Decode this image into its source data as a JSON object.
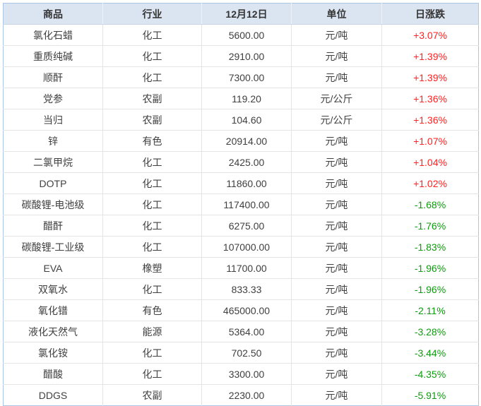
{
  "table": {
    "columns": [
      "商品",
      "行业",
      "12月12日",
      "单位",
      "日涨跌"
    ],
    "rows": [
      [
        "氯化石蜡",
        "化工",
        "5600.00",
        "元/吨",
        "+3.07%"
      ],
      [
        "重质纯碱",
        "化工",
        "2910.00",
        "元/吨",
        "+1.39%"
      ],
      [
        "顺酐",
        "化工",
        "7300.00",
        "元/吨",
        "+1.39%"
      ],
      [
        "党参",
        "农副",
        "119.20",
        "元/公斤",
        "+1.36%"
      ],
      [
        "当归",
        "农副",
        "104.60",
        "元/公斤",
        "+1.36%"
      ],
      [
        "锌",
        "有色",
        "20914.00",
        "元/吨",
        "+1.07%"
      ],
      [
        "二氯甲烷",
        "化工",
        "2425.00",
        "元/吨",
        "+1.04%"
      ],
      [
        "DOTP",
        "化工",
        "11860.00",
        "元/吨",
        "+1.02%"
      ],
      [
        "碳酸锂-电池级",
        "化工",
        "117400.00",
        "元/吨",
        "-1.68%"
      ],
      [
        "醋酐",
        "化工",
        "6275.00",
        "元/吨",
        "-1.76%"
      ],
      [
        "碳酸锂-工业级",
        "化工",
        "107000.00",
        "元/吨",
        "-1.83%"
      ],
      [
        "EVA",
        "橡塑",
        "11700.00",
        "元/吨",
        "-1.96%"
      ],
      [
        "双氧水",
        "化工",
        "833.33",
        "元/吨",
        "-1.96%"
      ],
      [
        "氧化镨",
        "有色",
        "465000.00",
        "元/吨",
        "-2.11%"
      ],
      [
        "液化天然气",
        "能源",
        "5364.00",
        "元/吨",
        "-3.28%"
      ],
      [
        "氯化铵",
        "化工",
        "702.50",
        "元/吨",
        "-3.44%"
      ],
      [
        "醋酸",
        "化工",
        "3300.00",
        "元/吨",
        "-4.35%"
      ],
      [
        "DDGS",
        "农副",
        "2230.00",
        "元/吨",
        "-5.91%"
      ]
    ]
  },
  "colors": {
    "header_bg": "#dbe5f2",
    "header_text": "#333333",
    "body_text": "#404040",
    "up": "#ff2222",
    "down": "#0f9b0f",
    "outer_border": "#aac6e6"
  },
  "chart_data": {
    "type": "table",
    "title": "",
    "columns": [
      "商品",
      "行业",
      "12月12日",
      "单位",
      "日涨跌"
    ],
    "rows": [
      {
        "商品": "氯化石蜡",
        "行业": "化工",
        "12月12日": 5600.0,
        "单位": "元/吨",
        "日涨跌": "+3.07%"
      },
      {
        "商品": "重质纯碱",
        "行业": "化工",
        "12月12日": 2910.0,
        "单位": "元/吨",
        "日涨跌": "+1.39%"
      },
      {
        "商品": "顺酐",
        "行业": "化工",
        "12月12日": 7300.0,
        "单位": "元/吨",
        "日涨跌": "+1.39%"
      },
      {
        "商品": "党参",
        "行业": "农副",
        "12月12日": 119.2,
        "单位": "元/公斤",
        "日涨跌": "+1.36%"
      },
      {
        "商品": "当归",
        "行业": "农副",
        "12月12日": 104.6,
        "单位": "元/公斤",
        "日涨跌": "+1.36%"
      },
      {
        "商品": "锌",
        "行业": "有色",
        "12月12日": 20914.0,
        "单位": "元/吨",
        "日涨跌": "+1.07%"
      },
      {
        "商品": "二氯甲烷",
        "行业": "化工",
        "12月12日": 2425.0,
        "单位": "元/吨",
        "日涨跌": "+1.04%"
      },
      {
        "商品": "DOTP",
        "行业": "化工",
        "12月12日": 11860.0,
        "单位": "元/吨",
        "日涨跌": "+1.02%"
      },
      {
        "商品": "碳酸锂-电池级",
        "行业": "化工",
        "12月12日": 117400.0,
        "单位": "元/吨",
        "日涨跌": "-1.68%"
      },
      {
        "商品": "醋酐",
        "行业": "化工",
        "12月12日": 6275.0,
        "单位": "元/吨",
        "日涨跌": "-1.76%"
      },
      {
        "商品": "碳酸锂-工业级",
        "行业": "化工",
        "12月12日": 107000.0,
        "单位": "元/吨",
        "日涨跌": "-1.83%"
      },
      {
        "商品": "EVA",
        "行业": "橡塑",
        "12月12日": 11700.0,
        "单位": "元/吨",
        "日涨跌": "-1.96%"
      },
      {
        "商品": "双氧水",
        "行业": "化工",
        "12月12日": 833.33,
        "单位": "元/吨",
        "日涨跌": "-1.96%"
      },
      {
        "商品": "氧化镨",
        "行业": "有色",
        "12月12日": 465000.0,
        "单位": "元/吨",
        "日涨跌": "-2.11%"
      },
      {
        "商品": "液化天然气",
        "行业": "能源",
        "12月12日": 5364.0,
        "单位": "元/吨",
        "日涨跌": "-3.28%"
      },
      {
        "商品": "氯化铵",
        "行业": "化工",
        "12月12日": 702.5,
        "单位": "元/吨",
        "日涨跌": "-3.44%"
      },
      {
        "商品": "醋酸",
        "行业": "化工",
        "12月12日": 3300.0,
        "单位": "元/吨",
        "日涨跌": "-4.35%"
      },
      {
        "商品": "DDGS",
        "行业": "农副",
        "12月12日": 2230.0,
        "单位": "元/吨",
        "日涨跌": "-5.91%"
      }
    ]
  }
}
